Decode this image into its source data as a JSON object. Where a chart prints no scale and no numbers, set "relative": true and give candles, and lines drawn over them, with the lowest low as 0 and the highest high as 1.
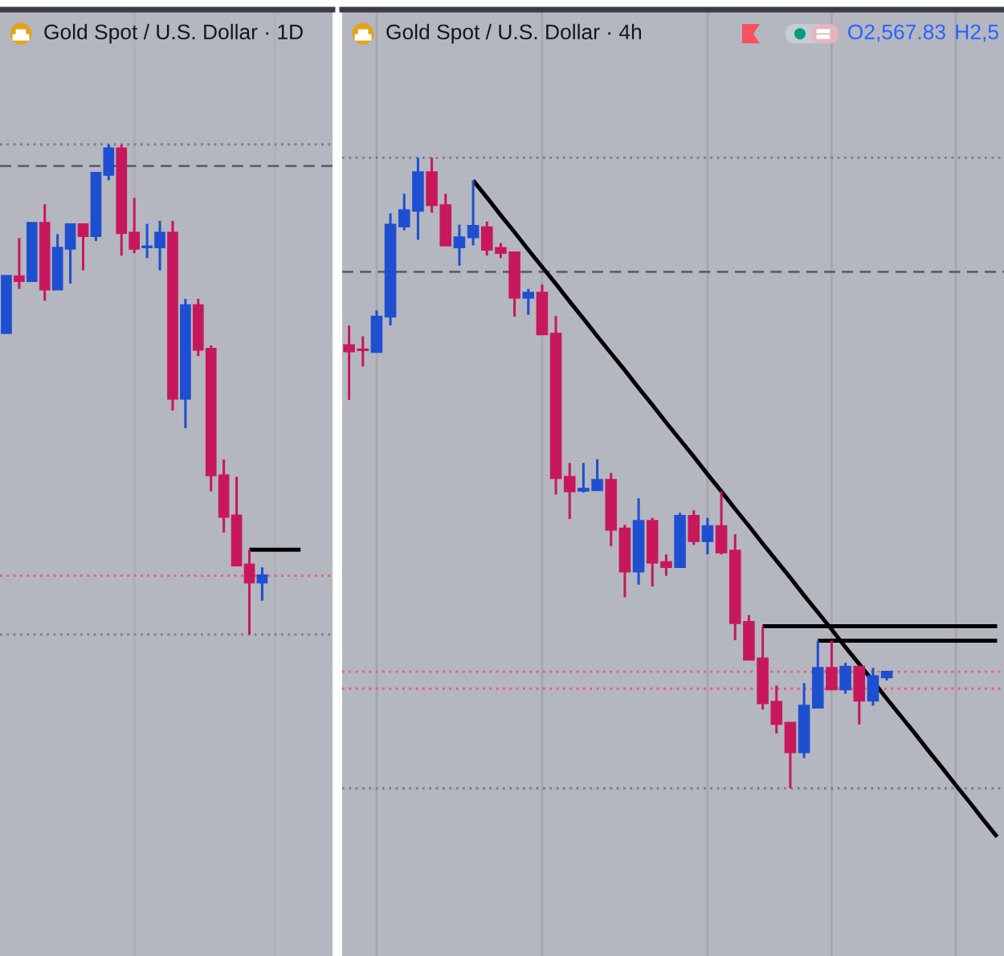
{
  "chart_data": [
    {
      "type": "candlestick",
      "title": "Gold Spot / U.S. Dollar · 1D",
      "relative": true,
      "categories": [
        null,
        null,
        null,
        null,
        null,
        null,
        null,
        null,
        null,
        null,
        null,
        null,
        null,
        null,
        null,
        null,
        null,
        null,
        null,
        null,
        null,
        null,
        null,
        null,
        null,
        null
      ],
      "ohlc": [
        [
          0.615,
          0.732,
          0.615,
          0.732
        ],
        [
          0.731,
          0.809,
          0.705,
          0.721
        ],
        [
          0.721,
          0.84,
          0.721,
          0.84
        ],
        [
          0.84,
          0.878,
          0.681,
          0.704
        ],
        [
          0.704,
          0.817,
          0.704,
          0.789
        ],
        [
          0.787,
          0.837,
          0.716,
          0.837
        ],
        [
          0.837,
          0.837,
          0.743,
          0.813
        ],
        [
          0.813,
          0.942,
          0.803,
          0.942
        ],
        [
          0.938,
          1.0,
          0.927,
          0.992
        ],
        [
          0.992,
          1.0,
          0.773,
          0.819
        ],
        [
          0.82,
          0.891,
          0.778,
          0.787
        ],
        [
          0.79,
          0.838,
          0.768,
          0.792
        ],
        [
          0.79,
          0.844,
          0.743,
          0.82
        ],
        [
          0.82,
          0.844,
          0.457,
          0.481
        ],
        [
          0.481,
          0.685,
          0.421,
          0.672
        ],
        [
          0.672,
          0.685,
          0.568,
          0.581
        ],
        [
          0.583,
          0.59,
          0.292,
          0.325
        ],
        [
          0.325,
          0.357,
          0.208,
          0.24
        ],
        [
          0.243,
          0.322,
          0.141,
          0.141
        ],
        [
          0.143,
          0.173,
          0.0,
          0.106
        ],
        [
          0.106,
          0.137,
          0.069,
          0.121
        ],
        null,
        null,
        null,
        null,
        null
      ],
      "colors": [
        "#1f4fd1",
        "#c8185c",
        "#1f4fd1",
        "#c8185c",
        "#1f4fd1",
        "#1f4fd1",
        "#c8185c",
        "#1f4fd1",
        "#1f4fd1",
        "#c8185c",
        "#c8185c",
        "#1f4fd1",
        "#1f4fd1",
        "#c8185c",
        "#1f4fd1",
        "#c8185c",
        "#c8185c",
        "#c8185c",
        "#c8185c",
        "#c8185c",
        "#1f4fd1",
        null,
        null,
        null,
        null,
        null
      ],
      "series": [
        {
          "type": "line",
          "color": "#000000",
          "values": [
            null,
            null,
            null,
            null,
            null,
            null,
            null,
            null,
            null,
            null,
            null,
            null,
            null,
            null,
            null,
            null,
            null,
            null,
            null,
            0.173,
            0.173,
            0.173,
            0.173,
            0.173,
            null,
            null
          ]
        }
      ],
      "ref_lines": [
        {
          "axis": "y",
          "value": 1.0,
          "color": "#7b7e87",
          "line_style": "dotted"
        },
        {
          "axis": "y",
          "value": 0.956,
          "color": "#5d606b",
          "line_style": "dashed"
        },
        {
          "axis": "y",
          "value": 0.12,
          "color": "#ef5a6c",
          "line_style": "dotted"
        },
        {
          "axis": "y",
          "value": 0.0,
          "color": "#7b7e87",
          "line_style": "dotted"
        }
      ]
    },
    {
      "type": "candlestick",
      "title": "Gold Spot / U.S. Dollar · 4h",
      "relative": true,
      "grid": "x",
      "annotations": [
        "O2,567.83",
        "H2,5"
      ],
      "categories": [
        null,
        null,
        null,
        null,
        null,
        null,
        null,
        null,
        null,
        null,
        null,
        null,
        null,
        null,
        null,
        null,
        null,
        null,
        null,
        null,
        null,
        null,
        null,
        null,
        null,
        null,
        null,
        null,
        null,
        null,
        null,
        null,
        null,
        null,
        null,
        null,
        null,
        null,
        null,
        null,
        null,
        null,
        null,
        null,
        null,
        null,
        null,
        null
      ],
      "ohlc": [
        [
          0.703,
          0.734,
          0.616,
          0.693
        ],
        [
          0.696,
          0.717,
          0.669,
          0.695
        ],
        [
          0.692,
          0.758,
          0.692,
          0.748
        ],
        [
          0.748,
          0.912,
          0.734,
          0.894
        ],
        [
          0.891,
          0.943,
          0.885,
          0.917
        ],
        [
          0.916,
          1.0,
          0.87,
          0.977
        ],
        [
          0.977,
          1.0,
          0.913,
          0.925
        ],
        [
          0.925,
          0.943,
          0.861,
          0.861
        ],
        [
          0.858,
          0.894,
          0.829,
          0.874
        ],
        [
          0.874,
          0.964,
          0.861,
          0.892
        ],
        [
          0.89,
          0.899,
          0.845,
          0.854
        ],
        [
          0.857,
          0.865,
          0.841,
          0.849
        ],
        [
          0.85,
          0.85,
          0.748,
          0.778
        ],
        [
          0.778,
          0.792,
          0.751,
          0.786
        ],
        [
          0.786,
          0.799,
          0.72,
          0.72
        ],
        [
          0.721,
          0.749,
          0.466,
          0.492
        ],
        [
          0.494,
          0.516,
          0.427,
          0.471
        ],
        [
          0.472,
          0.516,
          0.469,
          0.475
        ],
        [
          0.473,
          0.522,
          0.473,
          0.489
        ],
        [
          0.489,
          0.5,
          0.384,
          0.41
        ],
        [
          0.412,
          0.418,
          0.303,
          0.344
        ],
        [
          0.344,
          0.46,
          0.323,
          0.424
        ],
        [
          0.424,
          0.429,
          0.32,
          0.358
        ],
        [
          0.359,
          0.371,
          0.337,
          0.351
        ],
        [
          0.351,
          0.437,
          0.351,
          0.432
        ],
        [
          0.432,
          0.441,
          0.386,
          0.392
        ],
        [
          0.392,
          0.429,
          0.371,
          0.416
        ],
        [
          0.416,
          0.471,
          0.371,
          0.374
        ],
        [
          0.377,
          0.403,
          0.235,
          0.262
        ],
        [
          0.264,
          0.275,
          0.204,
          0.204
        ],
        [
          0.206,
          0.257,
          0.125,
          0.135
        ],
        [
          0.137,
          0.163,
          0.087,
          0.102
        ],
        [
          0.104,
          0.104,
          0.0,
          0.057
        ],
        [
          0.057,
          0.167,
          0.048,
          0.131
        ],
        [
          0.128,
          0.234,
          0.127,
          0.191
        ],
        [
          0.191,
          0.234,
          0.157,
          0.157
        ],
        [
          0.157,
          0.199,
          0.15,
          0.193
        ],
        [
          0.193,
          0.193,
          0.101,
          0.139
        ],
        [
          0.139,
          0.191,
          0.131,
          0.178
        ],
        [
          0.176,
          0.185,
          0.171,
          0.185
        ],
        null,
        null,
        null,
        null,
        null,
        null,
        null,
        null
      ],
      "colors": [
        "#c8185c",
        "#c8185c",
        "#1f4fd1",
        "#1f4fd1",
        "#1f4fd1",
        "#1f4fd1",
        "#c8185c",
        "#c8185c",
        "#1f4fd1",
        "#1f4fd1",
        "#c8185c",
        "#c8185c",
        "#c8185c",
        "#1f4fd1",
        "#c8185c",
        "#c8185c",
        "#c8185c",
        "#1f4fd1",
        "#1f4fd1",
        "#c8185c",
        "#c8185c",
        "#1f4fd1",
        "#c8185c",
        "#c8185c",
        "#1f4fd1",
        "#c8185c",
        "#1f4fd1",
        "#c8185c",
        "#c8185c",
        "#c8185c",
        "#c8185c",
        "#c8185c",
        "#c8185c",
        "#1f4fd1",
        "#1f4fd1",
        "#c8185c",
        "#1f4fd1",
        "#c8185c",
        "#1f4fd1",
        "#1f4fd1",
        null,
        null,
        null,
        null,
        null,
        null,
        null,
        null
      ],
      "series": [
        {
          "type": "line",
          "color": "#000000",
          "values": [
            null,
            null,
            null,
            null,
            null,
            null,
            null,
            null,
            null,
            0.964,
            0.937,
            0.909,
            0.882,
            0.854,
            0.827,
            0.8,
            0.772,
            0.745,
            0.717,
            0.69,
            0.663,
            0.635,
            0.608,
            0.58,
            0.553,
            0.526,
            0.498,
            0.471,
            0.443,
            0.416,
            0.388,
            0.361,
            0.334,
            0.306,
            0.279,
            0.252,
            0.224,
            0.197,
            0.17,
            0.142,
            0.115,
            0.088,
            0.06,
            0.033,
            0.005,
            -0.022,
            -0.05,
            -0.077
          ]
        },
        {
          "type": "line",
          "color": "#000000",
          "values": [
            null,
            null,
            null,
            null,
            null,
            null,
            null,
            null,
            null,
            null,
            null,
            null,
            null,
            null,
            null,
            null,
            null,
            null,
            null,
            null,
            null,
            null,
            null,
            null,
            null,
            null,
            null,
            null,
            null,
            null,
            0.257,
            0.257,
            0.257,
            0.257,
            0.257,
            0.257,
            0.257,
            0.257,
            0.257,
            0.257,
            0.257,
            0.257,
            0.257,
            0.257,
            0.257,
            0.257,
            0.257,
            0.257
          ]
        },
        {
          "type": "line",
          "color": "#000000",
          "values": [
            null,
            null,
            null,
            null,
            null,
            null,
            null,
            null,
            null,
            null,
            null,
            null,
            null,
            null,
            null,
            null,
            null,
            null,
            null,
            null,
            null,
            null,
            null,
            null,
            null,
            null,
            null,
            null,
            null,
            null,
            null,
            null,
            null,
            null,
            0.234,
            0.234,
            0.234,
            0.234,
            0.234,
            0.234,
            0.234,
            0.234,
            0.234,
            0.234,
            0.234,
            0.234,
            0.234,
            0.234
          ]
        }
      ],
      "ref_lines": [
        {
          "axis": "y",
          "value": 1.0,
          "color": "#7b7e87",
          "line_style": "dotted"
        },
        {
          "axis": "y",
          "value": 0.819,
          "color": "#5d606b",
          "line_style": "dashed"
        },
        {
          "axis": "y",
          "value": 0.185,
          "color": "#ef5a6c",
          "line_style": "dotted"
        },
        {
          "axis": "y",
          "value": 0.158,
          "color": "#ef5a6c",
          "line_style": "dotted"
        },
        {
          "axis": "y",
          "value": 0.0,
          "color": "#7b7e87",
          "line_style": "dotted"
        }
      ]
    }
  ]
}
